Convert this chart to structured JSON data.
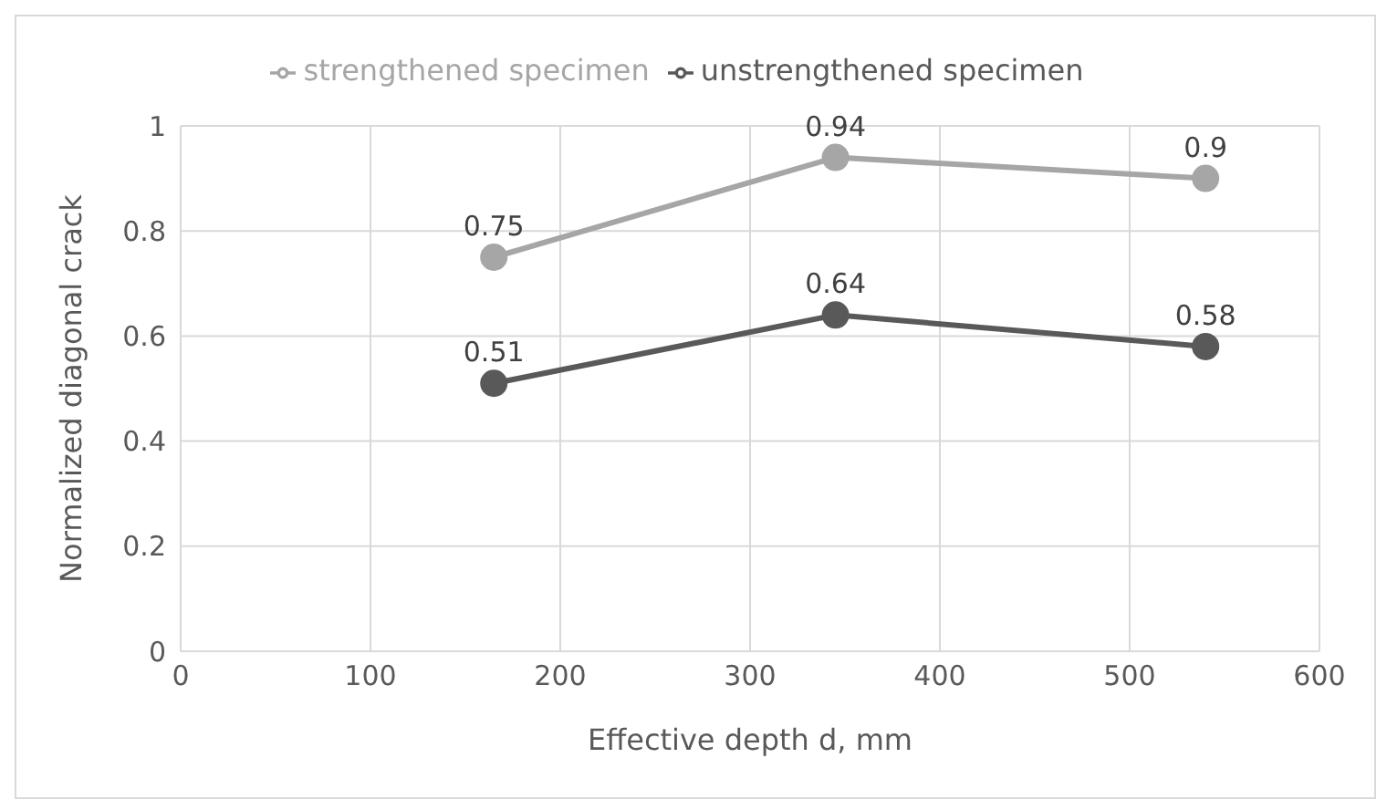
{
  "chart_data": {
    "type": "line",
    "xlabel": "Effective depth d, mm",
    "ylabel": "Normalized diagonal crack",
    "x": [
      165,
      345,
      540
    ],
    "series": [
      {
        "name": "unstrengthened specimen",
        "color": "#595959",
        "values": [
          0.51,
          0.64,
          0.58
        ]
      },
      {
        "name": "strengthened specimen",
        "color": "#a6a6a6",
        "values": [
          0.75,
          0.94,
          0.9
        ]
      }
    ],
    "xlim": [
      0,
      600
    ],
    "xticks": [
      0,
      100,
      200,
      300,
      400,
      500,
      600
    ],
    "ylim": [
      0,
      1
    ],
    "yticks": [
      0,
      0.2,
      0.4,
      0.6,
      0.8,
      1
    ],
    "grid": true,
    "legend": "top",
    "marker": "circle",
    "line_style": "solid",
    "data_labels": true
  }
}
